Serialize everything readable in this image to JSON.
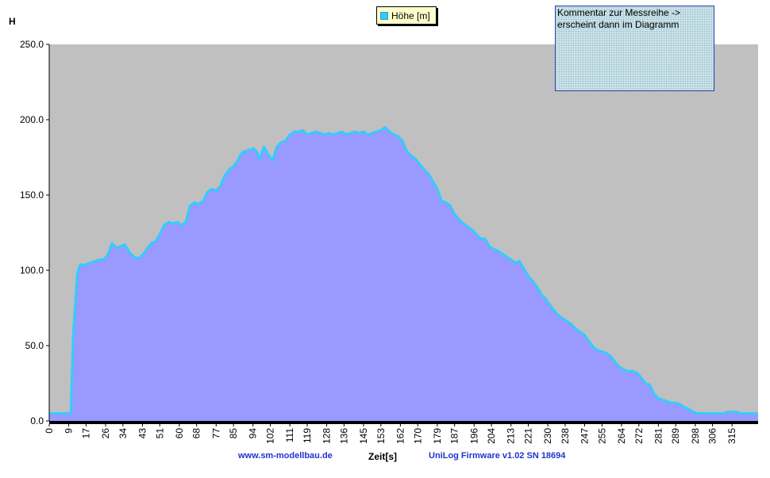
{
  "chart_data": {
    "type": "area",
    "ylabel": "H",
    "xlabel": "Zeit[s]",
    "ylim": [
      0,
      250
    ],
    "y_ticks": [
      "250.0",
      "200.0",
      "150.0",
      "100.0",
      "50.0",
      "0.0"
    ],
    "x_ticks": [
      "0",
      "9",
      "17",
      "26",
      "34",
      "43",
      "51",
      "60",
      "68",
      "77",
      "85",
      "94",
      "102",
      "111",
      "119",
      "128",
      "136",
      "145",
      "153",
      "162",
      "170",
      "179",
      "187",
      "196",
      "204",
      "213",
      "221",
      "230",
      "238",
      "247",
      "255",
      "264",
      "272",
      "281",
      "289",
      "298",
      "306",
      "315"
    ],
    "xlim": [
      0,
      327
    ],
    "grid": false,
    "legend_placement": "top-center",
    "series": [
      {
        "name": "Höhe [m]",
        "x": [
          0,
          9,
          10,
          11,
          12,
          13,
          14,
          15,
          16,
          17,
          19,
          21,
          23,
          25,
          27,
          29,
          31,
          33,
          35,
          37,
          39,
          41,
          43,
          45,
          47,
          49,
          51,
          53,
          55,
          57,
          59,
          61,
          63,
          65,
          67,
          69,
          71,
          73,
          75,
          77,
          79,
          81,
          83,
          85,
          87,
          88,
          89,
          90,
          91,
          92,
          93,
          94,
          95,
          96,
          97,
          99,
          101,
          103,
          105,
          107,
          109,
          111,
          113,
          115,
          117,
          119,
          121,
          123,
          125,
          127,
          129,
          131,
          133,
          135,
          137,
          139,
          141,
          143,
          145,
          147,
          149,
          151,
          153,
          155,
          157,
          159,
          161,
          163,
          165,
          167,
          169,
          171,
          173,
          175,
          177,
          179,
          181,
          183,
          185,
          187,
          189,
          191,
          193,
          195,
          197,
          199,
          201,
          203,
          205,
          207,
          209,
          211,
          213,
          215,
          217,
          219,
          221,
          223,
          225,
          227,
          229,
          231,
          233,
          235,
          237,
          239,
          241,
          243,
          245,
          247,
          249,
          251,
          253,
          255,
          257,
          259,
          261,
          263,
          265,
          267,
          269,
          271,
          273,
          275,
          277,
          279,
          281,
          283,
          285,
          287,
          289,
          291,
          293,
          295,
          297,
          299,
          301,
          303,
          305,
          307,
          309,
          311,
          313,
          315,
          317,
          319,
          321,
          323,
          325,
          327
        ],
        "values": [
          5,
          5,
          5,
          55,
          78,
          98,
          103,
          104,
          103,
          104,
          105,
          106,
          107,
          107,
          110,
          118,
          115,
          116,
          117,
          112,
          109,
          108,
          110,
          114,
          118,
          119,
          124,
          130,
          132,
          131,
          132,
          130,
          132,
          143,
          145,
          144,
          146,
          152,
          154,
          153,
          156,
          163,
          167,
          169,
          173,
          176,
          178,
          179,
          179,
          180,
          180,
          181,
          180,
          178,
          174,
          182,
          177,
          173,
          182,
          185,
          186,
          190,
          192,
          192,
          193,
          190,
          191,
          192,
          191,
          190,
          191,
          190,
          191,
          192,
          190,
          191,
          192,
          191,
          192,
          190,
          191,
          192,
          193,
          195,
          192,
          190,
          189,
          186,
          179,
          176,
          174,
          170,
          167,
          164,
          159,
          154,
          146,
          145,
          143,
          137,
          134,
          131,
          129,
          127,
          124,
          121,
          121,
          116,
          114,
          113,
          111,
          109,
          107,
          105,
          106,
          101,
          96,
          93,
          89,
          84,
          81,
          77,
          73,
          70,
          68,
          66,
          64,
          61,
          59,
          57,
          53,
          49,
          47,
          46,
          45,
          43,
          39,
          36,
          34,
          33,
          33,
          32,
          29,
          25,
          24,
          18,
          15,
          14,
          13,
          12,
          12,
          11,
          9,
          8,
          6,
          5,
          5,
          5,
          5,
          5,
          5,
          5,
          6,
          6,
          6,
          5,
          5,
          5,
          5,
          5
        ]
      }
    ],
    "colors": {
      "fill": "#9999ff",
      "line": "#33ccff",
      "plot_bg": "#c0c0c0",
      "axis": "#000000"
    }
  },
  "legend": {
    "label": "Höhe [m]"
  },
  "comment_box": {
    "line1": "Kommentar zur Messreihe ->",
    "line2": "erscheint dann im Diagramm"
  },
  "footer": {
    "website": "www.sm-modellbau.de",
    "firmware": "UniLog Firmware v1.02 SN 18694"
  }
}
